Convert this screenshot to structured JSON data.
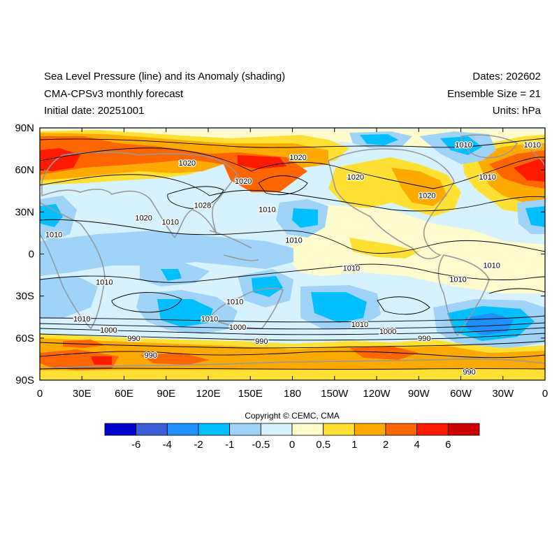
{
  "header": {
    "title": "Sea Level Pressure (line) and its Anomaly (shading)",
    "model": "CMA-CPSv3 monthly forecast",
    "initial_date": "Initial date: 20251001",
    "dates": "Dates: 202602",
    "ensemble": "Ensemble Size = 21",
    "units": "Units: hPa"
  },
  "axes": {
    "lat_labels": [
      "90N",
      "60N",
      "30N",
      "0",
      "30S",
      "60S",
      "90S"
    ],
    "lon_labels": [
      "0",
      "30E",
      "60E",
      "90E",
      "120E",
      "150E",
      "180",
      "150W",
      "120W",
      "90W",
      "60W",
      "30W",
      "0"
    ]
  },
  "contour_labels": [
    {
      "text": "1020",
      "lon": 105,
      "lat": 65
    },
    {
      "text": "1020",
      "lon": 184,
      "lat": 69
    },
    {
      "text": "1020",
      "lon": 145,
      "lat": 52
    },
    {
      "text": "1020",
      "lon": 225,
      "lat": 55
    },
    {
      "text": "1020",
      "lon": 74,
      "lat": 26
    },
    {
      "text": "1020",
      "lon": 276,
      "lat": 42
    },
    {
      "text": "1028",
      "lon": 116,
      "lat": 35
    },
    {
      "text": "1010",
      "lon": 162,
      "lat": 32
    },
    {
      "text": "1010",
      "lon": 10,
      "lat": 14
    },
    {
      "text": "1010",
      "lon": 93,
      "lat": 23
    },
    {
      "text": "1010",
      "lon": 181,
      "lat": 10
    },
    {
      "text": "1010",
      "lon": 222,
      "lat": -10
    },
    {
      "text": "1010",
      "lon": 46,
      "lat": -20
    },
    {
      "text": "1010",
      "lon": 139,
      "lat": -34
    },
    {
      "text": "1010",
      "lon": 298,
      "lat": -18
    },
    {
      "text": "1010",
      "lon": 322,
      "lat": -8
    },
    {
      "text": "1010",
      "lon": 302,
      "lat": 78
    },
    {
      "text": "1010",
      "lon": 319,
      "lat": 55
    },
    {
      "text": "1010",
      "lon": 30,
      "lat": -46
    },
    {
      "text": "1010",
      "lon": 121,
      "lat": -46
    },
    {
      "text": "1010",
      "lon": 228,
      "lat": -50
    },
    {
      "text": "1000",
      "lon": 49,
      "lat": -54
    },
    {
      "text": "1000",
      "lon": 141,
      "lat": -52
    },
    {
      "text": "1000",
      "lon": 248,
      "lat": -55
    },
    {
      "text": "990",
      "lon": 67,
      "lat": -60
    },
    {
      "text": "990",
      "lon": 158,
      "lat": -62
    },
    {
      "text": "990",
      "lon": 274,
      "lat": -60
    },
    {
      "text": "990",
      "lon": 79,
      "lat": -72
    },
    {
      "text": "990",
      "lon": 306,
      "lat": -84
    },
    {
      "text": "1010",
      "lon": 351,
      "lat": 78
    }
  ],
  "colorbar": {
    "colors": [
      "#0000cc",
      "#3a5fd9",
      "#1e90ff",
      "#00bfff",
      "#9fd3f8",
      "#d6f2ff",
      "#fffbcc",
      "#ffe033",
      "#ffaa00",
      "#ff6600",
      "#ff1a00",
      "#cc0000"
    ],
    "labels": [
      "-6",
      "-4",
      "-2",
      "-1",
      "-0.5",
      "0",
      "0.5",
      "1",
      "2",
      "4",
      "6"
    ]
  },
  "copyright": "Copyright © CEMC, CMA"
}
